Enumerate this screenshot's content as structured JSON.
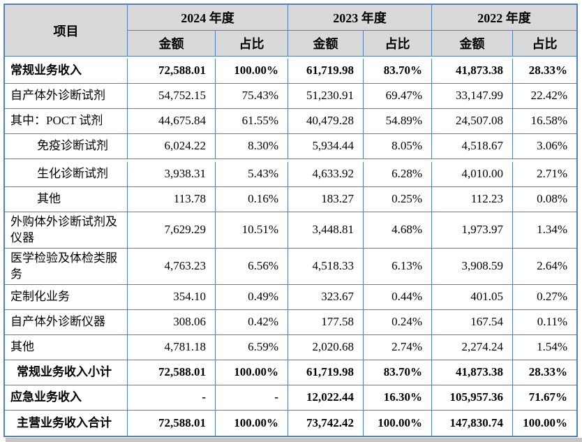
{
  "colors": {
    "border_blue": "#4f81bd",
    "header_bg": "#d9d9d9",
    "text": "#000000",
    "shadow": "#c6c6c6"
  },
  "chart_data": {
    "type": "table",
    "item_header": "项目",
    "year_groups": [
      {
        "label": "2024 年度",
        "sub": [
          "金额",
          "占比"
        ]
      },
      {
        "label": "2023 年度",
        "sub": [
          "金额",
          "占比"
        ]
      },
      {
        "label": "2022 年度",
        "sub": [
          "金额",
          "占比"
        ]
      }
    ],
    "rows": [
      {
        "label": "常规业务收入",
        "bold": true,
        "indent": 0,
        "tall": false,
        "gap_after": false,
        "values": [
          "72,588.01",
          "100.00%",
          "61,719.98",
          "83.70%",
          "41,873.38",
          "28.33%"
        ]
      },
      {
        "label": "自产体外诊断试剂",
        "bold": false,
        "indent": 0,
        "tall": false,
        "gap_after": false,
        "values": [
          "54,752.15",
          "75.43%",
          "51,230.91",
          "69.47%",
          "33,147.99",
          "22.42%"
        ]
      },
      {
        "label": "其中：POCT 试剂",
        "bold": false,
        "indent": 0,
        "tall": false,
        "gap_after": false,
        "values": [
          "44,675.84",
          "61.55%",
          "40,479.28",
          "54.89%",
          "24,507.08",
          "16.58%"
        ]
      },
      {
        "label": "免疫诊断试剂",
        "bold": false,
        "indent": 1,
        "tall": false,
        "gap_after": true,
        "values": [
          "6,024.22",
          "8.30%",
          "5,934.44",
          "8.05%",
          "4,518.67",
          "3.06%"
        ]
      },
      {
        "label": "生化诊断试剂",
        "bold": false,
        "indent": 1,
        "tall": false,
        "gap_after": false,
        "values": [
          "3,938.31",
          "5.43%",
          "4,633.92",
          "6.28%",
          "4,010.00",
          "2.71%"
        ]
      },
      {
        "label": "其他",
        "bold": false,
        "indent": 1,
        "tall": false,
        "gap_after": false,
        "values": [
          "113.78",
          "0.16%",
          "183.27",
          "0.25%",
          "112.23",
          "0.08%"
        ]
      },
      {
        "label": "外购体外诊断试剂及仪器",
        "bold": false,
        "indent": 0,
        "tall": true,
        "gap_after": false,
        "values": [
          "7,629.29",
          "10.51%",
          "3,448.81",
          "4.68%",
          "1,973.97",
          "1.34%"
        ]
      },
      {
        "label": "医学检验及体检类服务",
        "bold": false,
        "indent": 0,
        "tall": true,
        "gap_after": false,
        "values": [
          "4,763.23",
          "6.56%",
          "4,518.33",
          "6.13%",
          "3,908.59",
          "2.64%"
        ]
      },
      {
        "label": "定制化业务",
        "bold": false,
        "indent": 0,
        "tall": false,
        "gap_after": false,
        "values": [
          "354.10",
          "0.49%",
          "323.67",
          "0.44%",
          "401.05",
          "0.27%"
        ]
      },
      {
        "label": "自产体外诊断仪器",
        "bold": false,
        "indent": 0,
        "tall": false,
        "gap_after": false,
        "values": [
          "308.06",
          "0.42%",
          "177.58",
          "0.24%",
          "167.54",
          "0.11%"
        ]
      },
      {
        "label": "其他",
        "bold": false,
        "indent": 0,
        "tall": false,
        "gap_after": false,
        "values": [
          "4,781.18",
          "6.59%",
          "2,020.68",
          "2.74%",
          "2,274.24",
          "1.54%"
        ]
      },
      {
        "label": "常规业务收入小计",
        "bold": true,
        "indent": 2,
        "tall": false,
        "gap_after": false,
        "values": [
          "72,588.01",
          "100.00%",
          "61,719.98",
          "83.70%",
          "41,873.38",
          "28.33%"
        ]
      },
      {
        "label": "应急业务收入",
        "bold": true,
        "indent": 0,
        "tall": false,
        "gap_after": false,
        "values": [
          "-",
          "-",
          "12,022.44",
          "16.30%",
          "105,957.36",
          "71.67%"
        ]
      },
      {
        "label": "主营业务收入合计",
        "bold": true,
        "indent": 2,
        "tall": false,
        "gap_after": false,
        "values": [
          "72,588.01",
          "100.00%",
          "73,742.42",
          "100.00%",
          "147,830.74",
          "100.00%"
        ]
      }
    ]
  }
}
